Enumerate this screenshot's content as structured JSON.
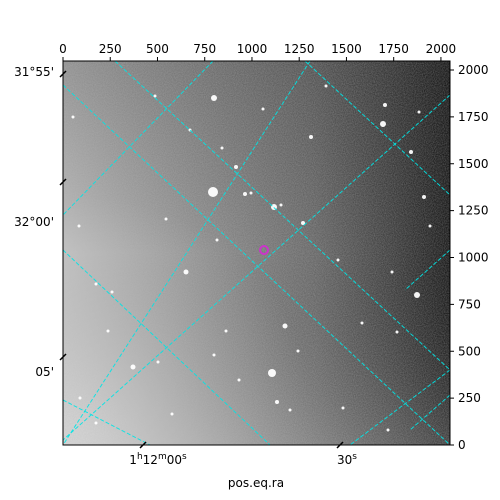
{
  "figure": {
    "xlabel": "pos.eq.ra",
    "grid_color": "#00e5e5",
    "marker_color": "#cc33cc",
    "pixel_axis_top": {
      "range": [
        0,
        2048
      ],
      "ticks": [
        0,
        250,
        500,
        750,
        1000,
        1250,
        1500,
        1750,
        2000
      ],
      "labels": [
        "0",
        "250",
        "500",
        "750",
        "1000",
        "1250",
        "1500",
        "1750",
        "2000"
      ]
    },
    "pixel_axis_right": {
      "range": [
        0,
        2048
      ],
      "ticks": [
        0,
        250,
        500,
        750,
        1000,
        1250,
        1500,
        1750,
        2000
      ],
      "labels": [
        "0",
        "250",
        "500",
        "750",
        "1000",
        "1250",
        "1500",
        "1750",
        "2000"
      ]
    },
    "dec_axis_left": {
      "labels": [
        "31°55'",
        "32°00'",
        "05'"
      ]
    },
    "ra_axis_bottom": {
      "labels": [
        "1h12m00s",
        "30s"
      ],
      "label_parts": [
        {
          "h": "1",
          "hs": "h",
          "m": "12",
          "ms": "m",
          "s": "00",
          "ss": "s"
        },
        {
          "s": "30",
          "ss": "s"
        }
      ]
    },
    "target_marker": {
      "shape": "circle",
      "description": "magenta target marker"
    }
  }
}
